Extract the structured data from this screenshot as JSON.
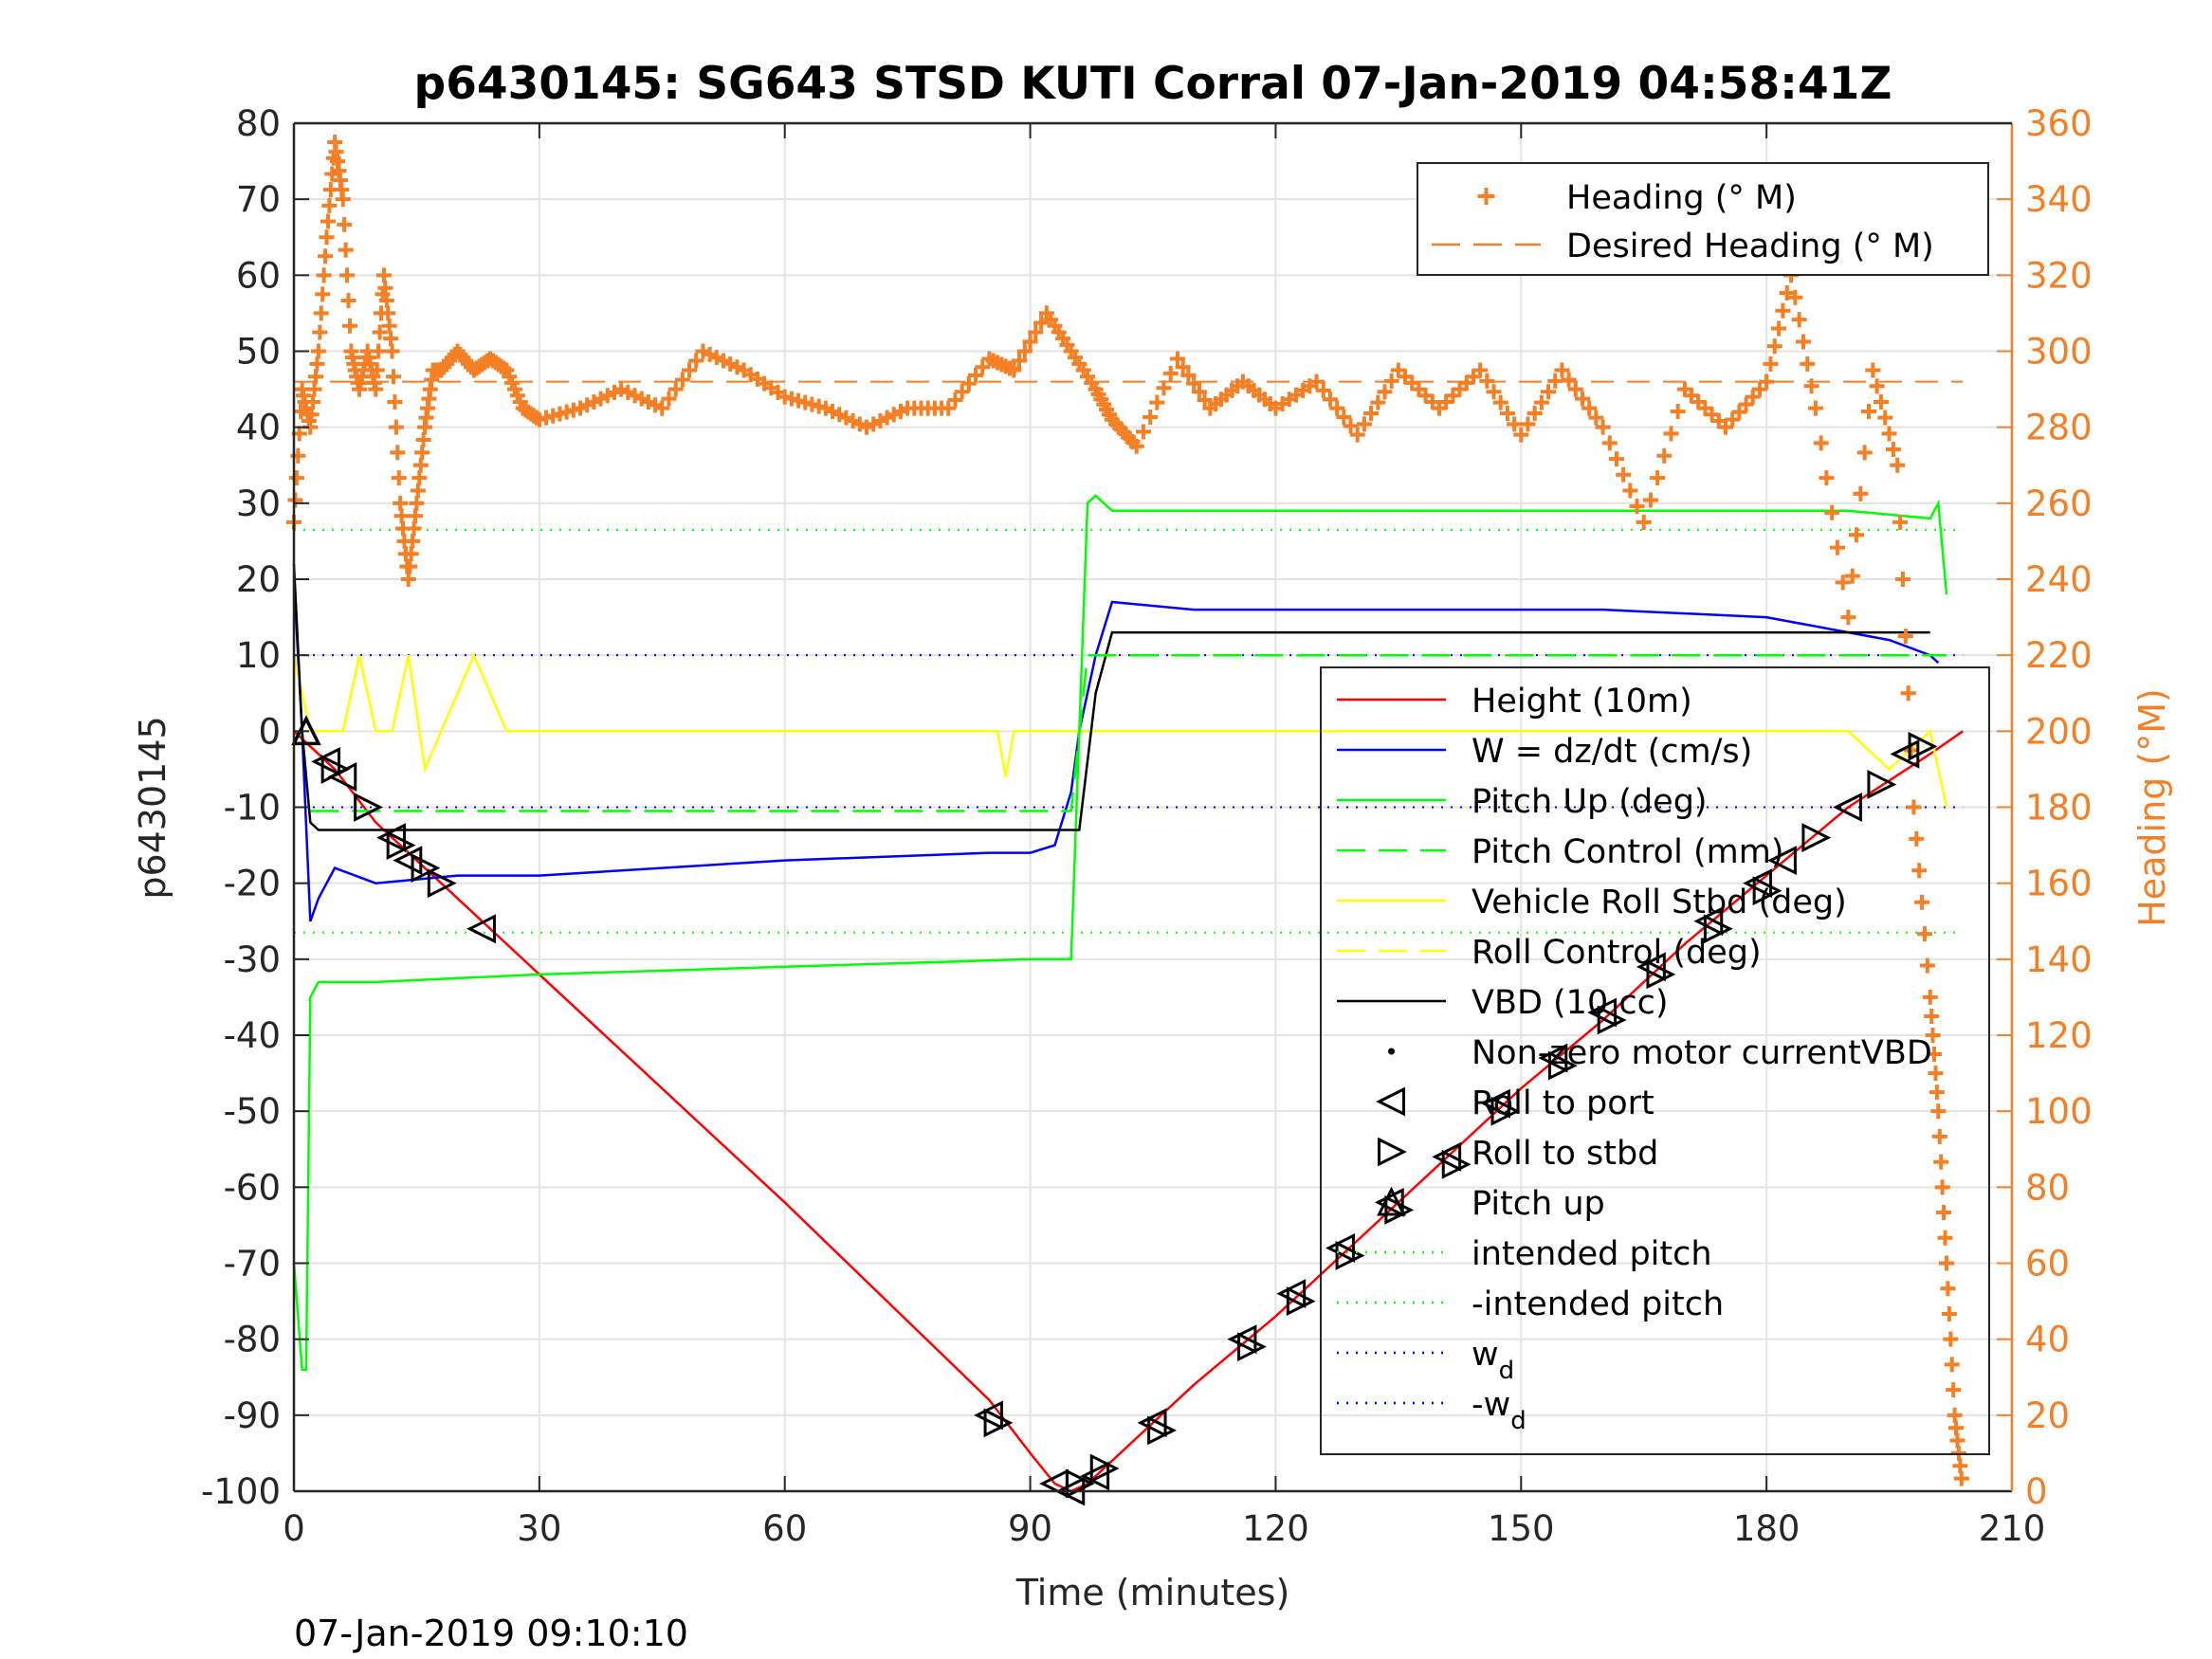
{
  "chart_data": {
    "type": "line",
    "title": "p6430145: SG643 STSD KUTI Corral 07-Jan-2019 04:58:41Z",
    "xlabel": "Time (minutes)",
    "ylabel": "p6430145",
    "y2label": "Heading (°M)",
    "timestamp": "07-Jan-2019 09:10:10",
    "xlim": [
      0,
      210
    ],
    "ylim": [
      -100,
      80
    ],
    "y2lim": [
      0,
      360
    ],
    "x_ticks": [
      "0",
      "30",
      "60",
      "90",
      "120",
      "150",
      "180",
      "210"
    ],
    "y_ticks": [
      "80",
      "70",
      "60",
      "50",
      "40",
      "30",
      "20",
      "10",
      "0",
      "-10",
      "-20",
      "-30",
      "-40",
      "-50",
      "-60",
      "-70",
      "-80",
      "-90",
      "-100"
    ],
    "y2_ticks": [
      "360",
      "340",
      "320",
      "300",
      "280",
      "260",
      "240",
      "220",
      "200",
      "180",
      "160",
      "140",
      "120",
      "100",
      "80",
      "60",
      "40",
      "20",
      "0"
    ],
    "grid": true,
    "legend_right_axis": {
      "placement": "top-right",
      "entries": [
        {
          "label": "Heading (° M)",
          "color": "#f47f24",
          "style": "plus"
        },
        {
          "label": "Desired Heading (° M)",
          "color": "#f47f24",
          "style": "dash"
        }
      ]
    },
    "legend_left_axis": {
      "placement": "right",
      "entries": [
        {
          "label": "Height (10m)",
          "color": "#ff0000",
          "style": "line"
        },
        {
          "label": "W = dz/dt (cm/s)",
          "color": "#0000ff",
          "style": "line"
        },
        {
          "label": "Pitch Up (deg)",
          "color": "#00ff00",
          "style": "line"
        },
        {
          "label": "Pitch Control (mm)",
          "color": "#00ff00",
          "style": "dash"
        },
        {
          "label": "Vehicle Roll Stbd (deg)",
          "color": "#ffff00",
          "style": "line"
        },
        {
          "label": "Roll Control (deg)",
          "color": "#ffff00",
          "style": "dash"
        },
        {
          "label": "VBD (10 cc)",
          "color": "#000000",
          "style": "line"
        },
        {
          "label": "Non-zero motor currentVBD",
          "color": "#000000",
          "style": "dot"
        },
        {
          "label": "Roll to port",
          "color": "#000000",
          "style": "tri-left"
        },
        {
          "label": "Roll to stbd",
          "color": "#000000",
          "style": "tri-right"
        },
        {
          "label": "Pitch up",
          "color": "#000000",
          "style": "tri-up"
        },
        {
          "label": "intended pitch",
          "color": "#00ff00",
          "style": "dot-line"
        },
        {
          "label": "-intended pitch",
          "color": "#00ff00",
          "style": "dot-line"
        },
        {
          "label": "w",
          "sub": "d",
          "color": "#0000ff",
          "style": "dot-line"
        },
        {
          "label": "-w",
          "sub": "d",
          "color": "#0000ff",
          "style": "dot-line"
        }
      ]
    },
    "reference_lines": {
      "intended_pitch": 26.5,
      "neg_intended_pitch": -26.5,
      "w_d": 10,
      "neg_w_d": -10,
      "desired_heading": 292
    },
    "series": [
      {
        "name": "Height (10m)",
        "color": "#ff0000",
        "axis": "left",
        "x": [
          0,
          5,
          10,
          20,
          30,
          60,
          85,
          90,
          93,
          95,
          97,
          100,
          110,
          120,
          130,
          140,
          150,
          160,
          170,
          180,
          190,
          200,
          204
        ],
        "y": [
          0,
          -5,
          -12,
          -22,
          -32,
          -62,
          -88,
          -95,
          -99,
          -100,
          -99,
          -96,
          -86,
          -77,
          -67,
          -57,
          -47,
          -38,
          -28,
          -19,
          -10,
          -3,
          0
        ]
      },
      {
        "name": "W = dz/dt (cm/s)",
        "color": "#0000ff",
        "axis": "left",
        "x": [
          0,
          1,
          2,
          3,
          5,
          10,
          20,
          30,
          60,
          85,
          90,
          93,
          95,
          96,
          98,
          100,
          110,
          120,
          140,
          160,
          180,
          190,
          195,
          200,
          201
        ],
        "y": [
          20,
          0,
          -25,
          -22,
          -18,
          -20,
          -19,
          -19,
          -17,
          -16,
          -16,
          -15,
          -8,
          0,
          10,
          17,
          16,
          16,
          16,
          16,
          15,
          13,
          12,
          10,
          9
        ]
      },
      {
        "name": "Pitch Up (deg)",
        "color": "#00ff00",
        "axis": "left",
        "x": [
          0,
          1,
          1.5,
          2,
          3,
          10,
          30,
          60,
          90,
          95,
          96,
          97,
          98,
          100,
          150,
          190,
          200,
          201,
          202
        ],
        "y": [
          -70,
          -84,
          -84,
          -35,
          -33,
          -33,
          -32,
          -31,
          -30,
          -30,
          0,
          30,
          31,
          29,
          29,
          29,
          28,
          30,
          18
        ]
      },
      {
        "name": "Vehicle Roll Stbd (deg)",
        "color": "#ffff00",
        "axis": "left",
        "x": [
          0,
          2,
          4,
          6,
          8,
          10,
          12,
          14,
          16,
          18,
          22,
          26,
          30,
          60,
          86,
          87,
          88,
          95,
          100,
          110,
          130,
          150,
          170,
          190,
          195,
          200,
          202
        ],
        "y": [
          10,
          0,
          0,
          0,
          10,
          0,
          0,
          10,
          -5,
          0,
          10,
          0,
          0,
          0,
          0,
          -6,
          0,
          0,
          0,
          0,
          0,
          0,
          0,
          0,
          -5,
          0,
          -10
        ]
      },
      {
        "name": "VBD (10 cc)",
        "color": "#000000",
        "axis": "left",
        "x": [
          0,
          1,
          2,
          3,
          10,
          30,
          60,
          80,
          95,
          96,
          98,
          100,
          130,
          160,
          190,
          200
        ],
        "y": [
          22,
          0,
          -12,
          -13,
          -13,
          -13,
          -13,
          -13,
          -13,
          -13,
          5,
          13,
          13,
          13,
          13,
          13
        ]
      },
      {
        "name": "Pitch Control (mm)",
        "color": "#00ff00",
        "axis": "left",
        "x": [
          2,
          95,
          97,
          202
        ],
        "y": [
          -10.5,
          -10.5,
          10,
          10
        ]
      },
      {
        "name": "Heading (° M)",
        "color": "#f47f24",
        "axis": "right",
        "x": [
          0,
          1,
          2,
          3,
          4,
          5,
          6,
          7,
          8,
          9,
          10,
          11,
          12,
          13,
          14,
          15,
          16,
          17,
          18,
          20,
          22,
          24,
          26,
          28,
          30,
          35,
          40,
          45,
          50,
          55,
          60,
          65,
          70,
          75,
          80,
          85,
          88,
          92,
          95,
          98,
          100,
          103,
          108,
          112,
          116,
          120,
          125,
          130,
          135,
          140,
          145,
          150,
          155,
          160,
          165,
          170,
          175,
          180,
          183,
          186,
          190,
          193,
          196,
          198,
          200,
          201,
          202,
          203,
          204
        ],
        "y": [
          255,
          290,
          280,
          300,
          330,
          355,
          340,
          300,
          290,
          300,
          290,
          320,
          300,
          260,
          240,
          260,
          280,
          295,
          295,
          300,
          295,
          298,
          295,
          285,
          282,
          285,
          290,
          285,
          300,
          295,
          288,
          285,
          280,
          285,
          285,
          298,
          295,
          310,
          300,
          290,
          282,
          275,
          298,
          285,
          292,
          285,
          292,
          278,
          295,
          285,
          295,
          278,
          295,
          280,
          255,
          290,
          280,
          292,
          320,
          285,
          230,
          295,
          270,
          180,
          130,
          100,
          60,
          20,
          0
        ]
      }
    ],
    "markers": {
      "pitch_up": [
        [
          1.5,
          0
        ]
      ],
      "roll_port": [
        [
          4,
          -4
        ],
        [
          6,
          -6
        ],
        [
          12,
          -14
        ],
        [
          14,
          -17
        ],
        [
          23,
          -26
        ],
        [
          85,
          -90
        ],
        [
          93,
          -99
        ],
        [
          95,
          -100
        ],
        [
          98,
          -98
        ],
        [
          105,
          -91
        ],
        [
          116,
          -80
        ],
        [
          122,
          -74
        ],
        [
          128,
          -68
        ],
        [
          134,
          -62
        ],
        [
          141,
          -56
        ],
        [
          147,
          -49
        ],
        [
          154,
          -43
        ],
        [
          160,
          -37
        ],
        [
          166,
          -31
        ],
        [
          173,
          -25
        ],
        [
          179,
          -20
        ],
        [
          182,
          -17
        ],
        [
          190,
          -10
        ],
        [
          197,
          -3
        ]
      ],
      "roll_stbd": [
        [
          5,
          -5
        ],
        [
          9,
          -10
        ],
        [
          13,
          -15
        ],
        [
          16,
          -18
        ],
        [
          18,
          -20
        ],
        [
          86,
          -91
        ],
        [
          96,
          -99
        ],
        [
          99,
          -97
        ],
        [
          106,
          -92
        ],
        [
          117,
          -81
        ],
        [
          123,
          -75
        ],
        [
          129,
          -69
        ],
        [
          135,
          -63
        ],
        [
          142,
          -57
        ],
        [
          148,
          -50
        ],
        [
          155,
          -44
        ],
        [
          161,
          -38
        ],
        [
          167,
          -32
        ],
        [
          174,
          -26
        ],
        [
          180,
          -21
        ],
        [
          186,
          -14
        ],
        [
          194,
          -7
        ],
        [
          199,
          -2
        ]
      ]
    }
  }
}
